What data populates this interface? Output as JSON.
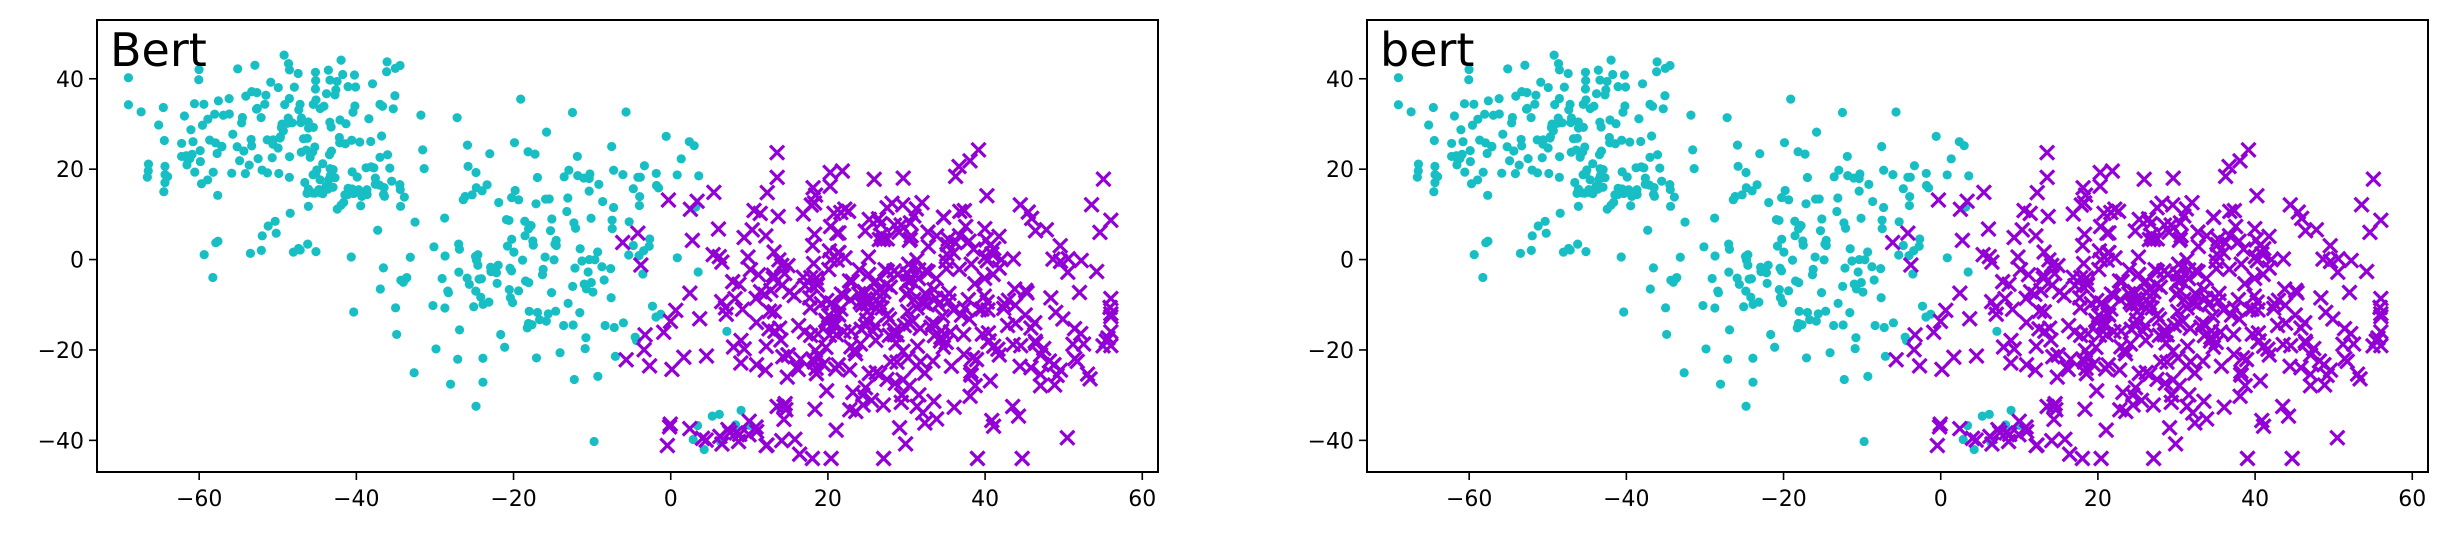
{
  "chart_data": [
    {
      "type": "scatter",
      "title": "Bert",
      "xlabel": "",
      "ylabel": "",
      "xlim": [
        -73,
        62
      ],
      "ylim": [
        -47,
        53
      ],
      "xticks": [
        -60,
        -40,
        -20,
        0,
        20,
        40,
        60
      ],
      "yticks": [
        -40,
        -20,
        0,
        20,
        40
      ],
      "grid": false,
      "legend": "none",
      "series": [
        {
          "marker": "dot",
          "color": "#17bfc4",
          "clusters": [
            {
              "center": [
                -48,
                30
              ],
              "spread": [
                9,
                9
              ],
              "count": 150
            },
            {
              "center": [
                -40,
                16
              ],
              "spread": [
                4,
                3
              ],
              "count": 40
            },
            {
              "center": [
                -62,
                20
              ],
              "spread": [
                3,
                4
              ],
              "count": 20
            },
            {
              "center": [
                -52,
                3
              ],
              "spread": [
                4,
                3
              ],
              "count": 15
            },
            {
              "center": [
                -18,
                0
              ],
              "spread": [
                9,
                14
              ],
              "count": 190
            },
            {
              "center": [
                -2,
                20
              ],
              "spread": [
                4,
                5
              ],
              "count": 15
            },
            {
              "center": [
                8,
                -37
              ],
              "spread": [
                4,
                2
              ],
              "count": 10
            }
          ]
        },
        {
          "marker": "x",
          "color": "#9200d6",
          "clusters": [
            {
              "center": [
                27,
                -10
              ],
              "spread": [
                13,
                14
              ],
              "count": 420
            },
            {
              "center": [
                10,
                -39
              ],
              "spread": [
                5,
                2
              ],
              "count": 20
            },
            {
              "center": [
                48,
                -18
              ],
              "spread": [
                4,
                7
              ],
              "count": 25
            }
          ]
        }
      ]
    },
    {
      "type": "scatter",
      "title": "bert",
      "xlabel": "",
      "ylabel": "",
      "xlim": [
        -73,
        62
      ],
      "ylim": [
        -47,
        53
      ],
      "xticks": [
        -60,
        -40,
        -20,
        0,
        20,
        40,
        60
      ],
      "yticks": [
        -40,
        -20,
        0,
        20,
        40
      ],
      "grid": false,
      "legend": "none",
      "series": [
        {
          "marker": "dot",
          "color": "#17bfc4",
          "clusters": [
            {
              "center": [
                -48,
                30
              ],
              "spread": [
                9,
                9
              ],
              "count": 150
            },
            {
              "center": [
                -40,
                16
              ],
              "spread": [
                4,
                3
              ],
              "count": 40
            },
            {
              "center": [
                -62,
                20
              ],
              "spread": [
                3,
                4
              ],
              "count": 20
            },
            {
              "center": [
                -52,
                3
              ],
              "spread": [
                4,
                3
              ],
              "count": 15
            },
            {
              "center": [
                -18,
                0
              ],
              "spread": [
                9,
                14
              ],
              "count": 190
            },
            {
              "center": [
                -2,
                20
              ],
              "spread": [
                4,
                5
              ],
              "count": 15
            },
            {
              "center": [
                8,
                -37
              ],
              "spread": [
                4,
                2
              ],
              "count": 10
            }
          ]
        },
        {
          "marker": "x",
          "color": "#9200d6",
          "clusters": [
            {
              "center": [
                27,
                -10
              ],
              "spread": [
                13,
                14
              ],
              "count": 420
            },
            {
              "center": [
                10,
                -39
              ],
              "spread": [
                5,
                2
              ],
              "count": 20
            },
            {
              "center": [
                48,
                -18
              ],
              "spread": [
                4,
                7
              ],
              "count": 25
            }
          ]
        }
      ]
    }
  ]
}
